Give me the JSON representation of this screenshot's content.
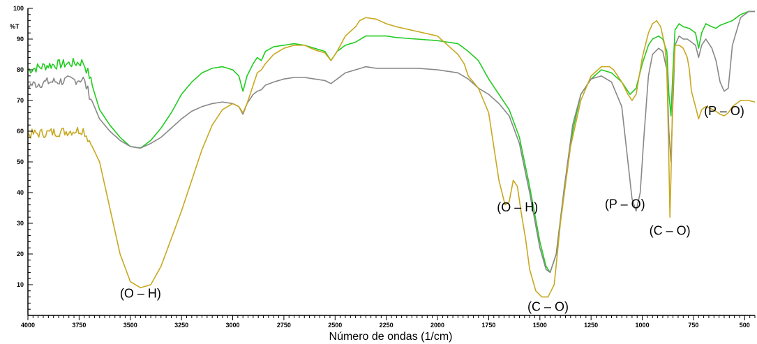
{
  "chart_data": {
    "type": "line",
    "title": "",
    "xlabel": "Número de ondas (1/cm)",
    "ylabel": "%T",
    "xlim": [
      4000,
      450
    ],
    "ylim": [
      0,
      100
    ],
    "x_ticks": [
      4000,
      3750,
      3500,
      3250,
      3000,
      2750,
      2500,
      2250,
      2000,
      1750,
      1500,
      1250,
      1000,
      750,
      500
    ],
    "y_ticks": [
      10,
      20,
      30,
      40,
      50,
      60,
      70,
      80,
      90,
      100
    ],
    "grid": false,
    "legend": "none",
    "series": [
      {
        "color": "#22cc22",
        "points": [
          [
            4000,
            80
          ],
          [
            3900,
            81.5
          ],
          [
            3800,
            82
          ],
          [
            3730,
            82.5
          ],
          [
            3700,
            78
          ],
          [
            3650,
            67
          ],
          [
            3600,
            62
          ],
          [
            3550,
            58
          ],
          [
            3500,
            55
          ],
          [
            3450,
            54.5
          ],
          [
            3400,
            57
          ],
          [
            3350,
            61
          ],
          [
            3300,
            66
          ],
          [
            3250,
            72
          ],
          [
            3200,
            76
          ],
          [
            3150,
            79
          ],
          [
            3100,
            80.5
          ],
          [
            3050,
            81
          ],
          [
            3000,
            80
          ],
          [
            2970,
            78
          ],
          [
            2950,
            73
          ],
          [
            2930,
            78
          ],
          [
            2900,
            82
          ],
          [
            2880,
            84
          ],
          [
            2860,
            83
          ],
          [
            2840,
            86
          ],
          [
            2800,
            87.5
          ],
          [
            2750,
            88
          ],
          [
            2700,
            88.5
          ],
          [
            2650,
            88
          ],
          [
            2600,
            87
          ],
          [
            2550,
            86
          ],
          [
            2520,
            83
          ],
          [
            2490,
            86
          ],
          [
            2450,
            88
          ],
          [
            2400,
            89
          ],
          [
            2350,
            91
          ],
          [
            2300,
            91
          ],
          [
            2250,
            91
          ],
          [
            2200,
            90.5
          ],
          [
            2100,
            90
          ],
          [
            2000,
            89.5
          ],
          [
            1900,
            88.5
          ],
          [
            1850,
            86
          ],
          [
            1800,
            83
          ],
          [
            1750,
            77
          ],
          [
            1700,
            72
          ],
          [
            1650,
            67
          ],
          [
            1600,
            58
          ],
          [
            1550,
            42
          ],
          [
            1500,
            24
          ],
          [
            1470,
            16
          ],
          [
            1450,
            14
          ],
          [
            1420,
            20
          ],
          [
            1380,
            42
          ],
          [
            1340,
            60
          ],
          [
            1300,
            72
          ],
          [
            1250,
            77
          ],
          [
            1200,
            80
          ],
          [
            1150,
            79
          ],
          [
            1100,
            76
          ],
          [
            1060,
            72
          ],
          [
            1030,
            74
          ],
          [
            1000,
            82
          ],
          [
            970,
            88
          ],
          [
            950,
            90
          ],
          [
            920,
            91
          ],
          [
            900,
            90
          ],
          [
            880,
            86
          ],
          [
            870,
            72
          ],
          [
            860,
            65
          ],
          [
            850,
            80
          ],
          [
            840,
            93
          ],
          [
            820,
            95
          ],
          [
            800,
            94
          ],
          [
            770,
            93.5
          ],
          [
            740,
            92
          ],
          [
            725,
            87
          ],
          [
            710,
            92
          ],
          [
            690,
            95
          ],
          [
            660,
            94
          ],
          [
            640,
            93.5
          ],
          [
            620,
            94.5
          ],
          [
            600,
            95
          ],
          [
            560,
            96
          ],
          [
            520,
            98
          ],
          [
            480,
            99
          ],
          [
            450,
            99
          ]
        ]
      },
      {
        "color": "#888888",
        "points": [
          [
            4000,
            75
          ],
          [
            3900,
            76
          ],
          [
            3800,
            76.5
          ],
          [
            3730,
            77
          ],
          [
            3700,
            72
          ],
          [
            3650,
            64
          ],
          [
            3600,
            60
          ],
          [
            3550,
            57
          ],
          [
            3500,
            55
          ],
          [
            3450,
            54.5
          ],
          [
            3400,
            56
          ],
          [
            3350,
            58
          ],
          [
            3300,
            61
          ],
          [
            3250,
            64
          ],
          [
            3200,
            66.5
          ],
          [
            3150,
            68
          ],
          [
            3100,
            69
          ],
          [
            3050,
            69.5
          ],
          [
            3000,
            69
          ],
          [
            2970,
            68
          ],
          [
            2950,
            65.5
          ],
          [
            2930,
            69
          ],
          [
            2900,
            72
          ],
          [
            2880,
            73
          ],
          [
            2860,
            73.5
          ],
          [
            2840,
            75
          ],
          [
            2800,
            76
          ],
          [
            2750,
            77
          ],
          [
            2700,
            77.5
          ],
          [
            2650,
            77.5
          ],
          [
            2600,
            77
          ],
          [
            2550,
            76.5
          ],
          [
            2520,
            75.5
          ],
          [
            2490,
            77
          ],
          [
            2450,
            79
          ],
          [
            2400,
            80
          ],
          [
            2350,
            81
          ],
          [
            2300,
            80.5
          ],
          [
            2250,
            80.5
          ],
          [
            2200,
            80.5
          ],
          [
            2100,
            80.5
          ],
          [
            2000,
            80
          ],
          [
            1900,
            79
          ],
          [
            1850,
            77
          ],
          [
            1800,
            74
          ],
          [
            1750,
            72
          ],
          [
            1700,
            69
          ],
          [
            1650,
            65
          ],
          [
            1600,
            56
          ],
          [
            1550,
            40
          ],
          [
            1500,
            22
          ],
          [
            1470,
            15
          ],
          [
            1450,
            14
          ],
          [
            1420,
            20
          ],
          [
            1380,
            42
          ],
          [
            1340,
            62
          ],
          [
            1300,
            72
          ],
          [
            1250,
            77
          ],
          [
            1200,
            78
          ],
          [
            1150,
            76
          ],
          [
            1100,
            68
          ],
          [
            1070,
            50
          ],
          [
            1050,
            38
          ],
          [
            1030,
            34
          ],
          [
            1010,
            40
          ],
          [
            990,
            60
          ],
          [
            970,
            78
          ],
          [
            950,
            85
          ],
          [
            920,
            87
          ],
          [
            900,
            86
          ],
          [
            880,
            80
          ],
          [
            870,
            60
          ],
          [
            860,
            50
          ],
          [
            850,
            70
          ],
          [
            840,
            88
          ],
          [
            820,
            91
          ],
          [
            800,
            90
          ],
          [
            780,
            90
          ],
          [
            760,
            89
          ],
          [
            740,
            88
          ],
          [
            725,
            84
          ],
          [
            710,
            88
          ],
          [
            690,
            90
          ],
          [
            660,
            87
          ],
          [
            640,
            83
          ],
          [
            620,
            76
          ],
          [
            600,
            73
          ],
          [
            580,
            74
          ],
          [
            560,
            88
          ],
          [
            520,
            97
          ],
          [
            480,
            99
          ],
          [
            450,
            99
          ]
        ]
      },
      {
        "color": "#c8a820",
        "points": [
          [
            4000,
            59
          ],
          [
            3900,
            59.5
          ],
          [
            3800,
            60
          ],
          [
            3730,
            60.5
          ],
          [
            3700,
            57
          ],
          [
            3650,
            50
          ],
          [
            3600,
            35
          ],
          [
            3550,
            20
          ],
          [
            3500,
            11
          ],
          [
            3450,
            9
          ],
          [
            3400,
            10
          ],
          [
            3350,
            16
          ],
          [
            3300,
            25
          ],
          [
            3250,
            34
          ],
          [
            3200,
            44
          ],
          [
            3150,
            54
          ],
          [
            3100,
            62
          ],
          [
            3050,
            67
          ],
          [
            3000,
            69
          ],
          [
            2970,
            68
          ],
          [
            2950,
            66
          ],
          [
            2930,
            69
          ],
          [
            2900,
            75
          ],
          [
            2880,
            79
          ],
          [
            2860,
            80
          ],
          [
            2840,
            82
          ],
          [
            2800,
            85
          ],
          [
            2750,
            87
          ],
          [
            2700,
            88
          ],
          [
            2650,
            88
          ],
          [
            2600,
            86.5
          ],
          [
            2550,
            85.5
          ],
          [
            2520,
            83
          ],
          [
            2490,
            86
          ],
          [
            2450,
            91
          ],
          [
            2400,
            94
          ],
          [
            2380,
            96
          ],
          [
            2350,
            97
          ],
          [
            2300,
            96.5
          ],
          [
            2250,
            95
          ],
          [
            2200,
            94
          ],
          [
            2100,
            92.5
          ],
          [
            2000,
            91
          ],
          [
            1950,
            88
          ],
          [
            1900,
            85
          ],
          [
            1870,
            82
          ],
          [
            1850,
            78
          ],
          [
            1800,
            74
          ],
          [
            1750,
            66
          ],
          [
            1700,
            44
          ],
          [
            1670,
            36
          ],
          [
            1650,
            37
          ],
          [
            1630,
            44
          ],
          [
            1610,
            42
          ],
          [
            1590,
            33
          ],
          [
            1570,
            25
          ],
          [
            1550,
            15
          ],
          [
            1520,
            8
          ],
          [
            1490,
            6
          ],
          [
            1460,
            6
          ],
          [
            1430,
            10
          ],
          [
            1400,
            30
          ],
          [
            1350,
            55
          ],
          [
            1300,
            70
          ],
          [
            1250,
            78
          ],
          [
            1200,
            81
          ],
          [
            1160,
            81
          ],
          [
            1140,
            80
          ],
          [
            1100,
            76
          ],
          [
            1070,
            72
          ],
          [
            1050,
            70
          ],
          [
            1030,
            72
          ],
          [
            1000,
            84
          ],
          [
            970,
            92
          ],
          [
            950,
            95
          ],
          [
            930,
            96
          ],
          [
            910,
            94
          ],
          [
            890,
            88
          ],
          [
            880,
            80
          ],
          [
            870,
            50
          ],
          [
            865,
            32
          ],
          [
            860,
            45
          ],
          [
            850,
            75
          ],
          [
            840,
            88
          ],
          [
            820,
            88
          ],
          [
            800,
            87
          ],
          [
            780,
            84
          ],
          [
            770,
            80
          ],
          [
            760,
            73
          ],
          [
            740,
            68
          ],
          [
            725,
            64
          ],
          [
            710,
            67
          ],
          [
            690,
            68
          ],
          [
            670,
            67.5
          ],
          [
            640,
            66.5
          ],
          [
            620,
            65.5
          ],
          [
            600,
            65
          ],
          [
            580,
            66
          ],
          [
            560,
            68
          ],
          [
            520,
            70
          ],
          [
            480,
            70
          ],
          [
            450,
            69.5
          ]
        ]
      }
    ],
    "annotations": [
      {
        "text": "(O – H)",
        "x": 3450,
        "y": 9
      },
      {
        "text": "(O – H)",
        "x": 1650,
        "y": 35
      },
      {
        "text": "(C – O)",
        "x": 1460,
        "y": 6
      },
      {
        "text": "(P – O)",
        "x": 1030,
        "y": 34
      },
      {
        "text": "(C – O)",
        "x": 865,
        "y": 31
      },
      {
        "text": "(P – O)",
        "x": 600,
        "y": 65
      }
    ]
  }
}
